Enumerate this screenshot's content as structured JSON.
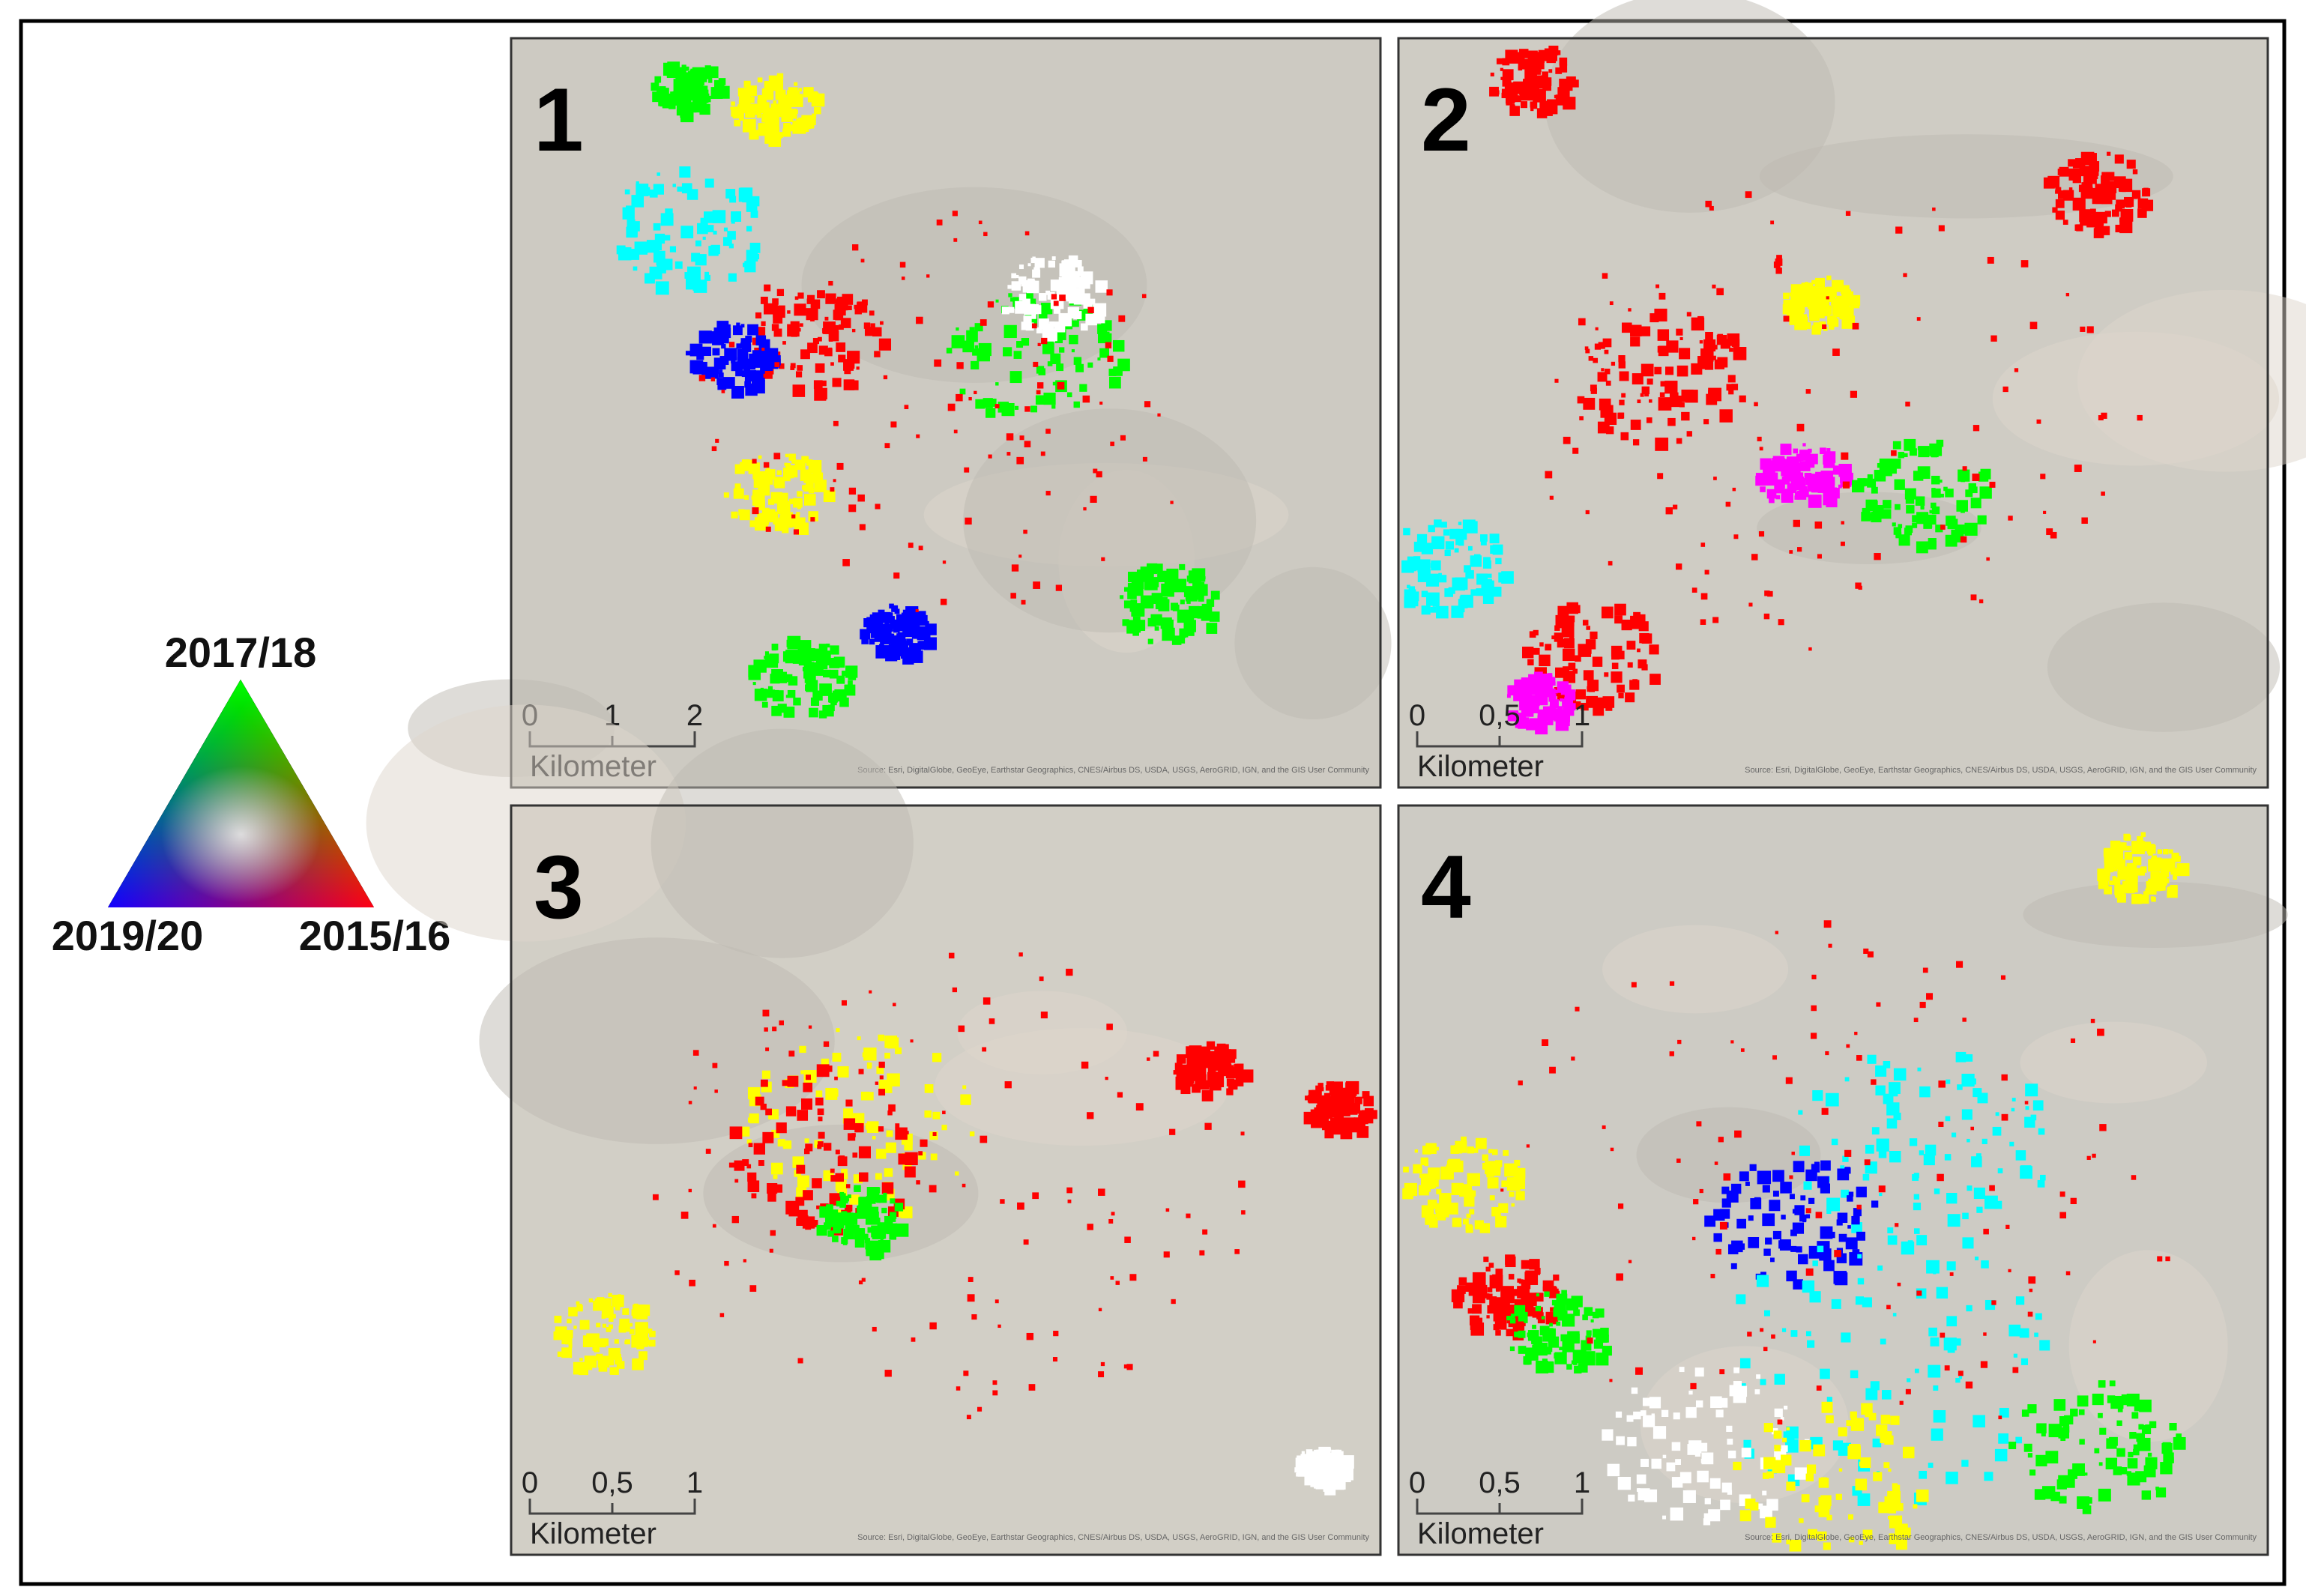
{
  "legend": {
    "top": "2017/18",
    "left": "2019/20",
    "right": "2015/16"
  },
  "panels": [
    {
      "number": "1",
      "scale": [
        "0",
        "1",
        "2"
      ],
      "unit": "Kilometer",
      "attribution": "Source: Esri, DigitalGlobe, GeoEye, Earthstar Geographics, CNES/Airbus DS, USDA, USGS, AeroGRID, IGN, and the GIS User Community"
    },
    {
      "number": "2",
      "scale": [
        "0",
        "0,5",
        "1"
      ],
      "unit": "Kilometer",
      "attribution": "Source: Esri, DigitalGlobe, GeoEye, Earthstar Geographics, CNES/Airbus DS, USDA, USGS, AeroGRID, IGN, and the GIS User Community"
    },
    {
      "number": "3",
      "scale": [
        "0",
        "0,5",
        "1"
      ],
      "unit": "Kilometer",
      "attribution": "Source: Esri, DigitalGlobe, GeoEye, Earthstar Geographics, CNES/Airbus DS, USDA, USGS, AeroGRID, IGN, and the GIS User Community"
    },
    {
      "number": "4",
      "scale": [
        "0",
        "0,5",
        "1"
      ],
      "unit": "Kilometer",
      "attribution": "Source: Esri, DigitalGlobe, GeoEye, Earthstar Geographics, CNES/Airbus DS, USDA, USGS, AeroGRID, IGN, and the GIS User Community"
    }
  ]
}
